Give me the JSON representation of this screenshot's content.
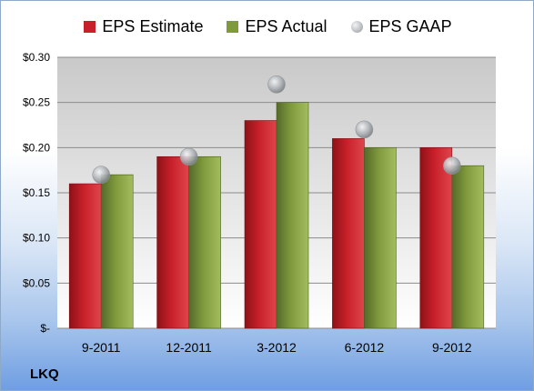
{
  "ticker": "LKQ",
  "colors": {
    "estimate": "#c8202a",
    "actual": "#7f9a3c",
    "gaap": "#b0b4b8"
  },
  "chart_data": {
    "type": "bar",
    "categories": [
      "9-2011",
      "12-2011",
      "3-2012",
      "6-2012",
      "9-2012"
    ],
    "series": [
      {
        "name": "EPS Estimate",
        "values": [
          0.16,
          0.19,
          0.23,
          0.21,
          0.2
        ]
      },
      {
        "name": "EPS Actual",
        "values": [
          0.17,
          0.19,
          0.25,
          0.2,
          0.18
        ]
      },
      {
        "name": "EPS GAAP",
        "values": [
          0.17,
          0.19,
          0.27,
          0.22,
          0.18
        ],
        "style": "marker"
      }
    ],
    "ylim": [
      0,
      0.3
    ],
    "yticks": [
      0,
      0.05,
      0.1,
      0.15,
      0.2,
      0.25,
      0.3
    ],
    "ytick_labels": [
      "$-",
      "$0.05",
      "$0.10",
      "$0.15",
      "$0.20",
      "$0.25",
      "$0.30"
    ],
    "grid": true,
    "legend_position": "top"
  }
}
